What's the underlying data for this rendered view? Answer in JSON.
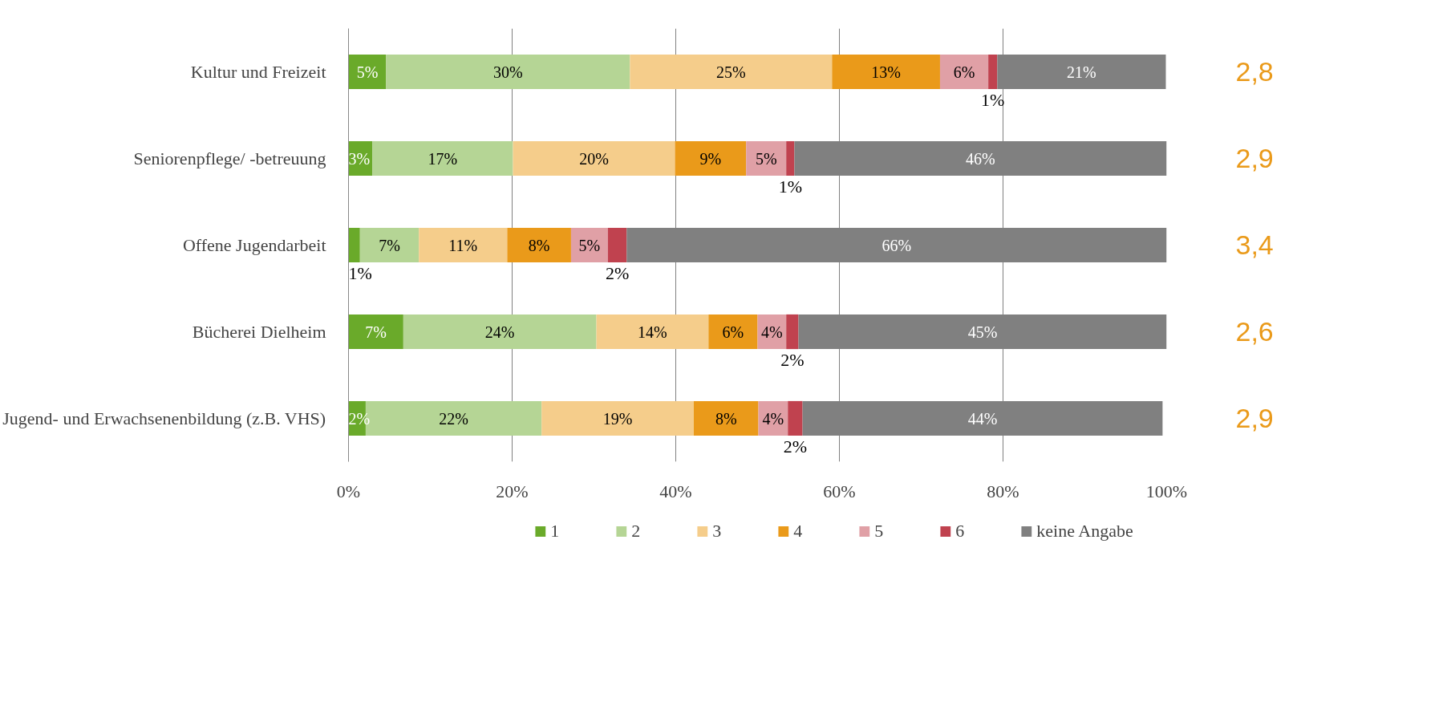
{
  "chart_data": {
    "type": "bar",
    "orientation": "horizontal",
    "stacked": true,
    "categories": [
      "Kultur und Freizeit",
      "Seniorenpflege/ -betreuung",
      "Offene Jugendarbeit",
      "Bücherei Dielheim",
      "Jugend- und Erwachsenenbildung (z.B. VHS)"
    ],
    "series": [
      {
        "name": "1",
        "color": "#6aaa2a",
        "values": [
          4.6,
          2.9,
          1.4,
          6.7,
          2.1
        ],
        "value_labels": [
          "5%",
          "3%",
          "1%",
          "7%",
          "2%"
        ]
      },
      {
        "name": "2",
        "color": "#b5d595",
        "values": [
          29.8,
          17.2,
          7.2,
          23.6,
          21.5
        ],
        "value_labels": [
          "30%",
          "17%",
          "7%",
          "24%",
          "22%"
        ]
      },
      {
        "name": "3",
        "color": "#f5cd8b",
        "values": [
          24.7,
          19.8,
          10.8,
          13.7,
          18.6
        ],
        "value_labels": [
          "25%",
          "20%",
          "11%",
          "14%",
          "19%"
        ]
      },
      {
        "name": "4",
        "color": "#ea9a1a",
        "values": [
          13.2,
          8.7,
          7.8,
          6.0,
          7.9
        ],
        "value_labels": [
          "13%",
          "9%",
          "8%",
          "6%",
          "8%"
        ]
      },
      {
        "name": "5",
        "color": "#e0a0a6",
        "values": [
          5.9,
          4.9,
          4.5,
          3.5,
          3.6
        ],
        "value_labels": [
          "6%",
          "5%",
          "5%",
          "4%",
          "4%"
        ]
      },
      {
        "name": "6",
        "color": "#c0424f",
        "values": [
          1.1,
          1.0,
          2.3,
          1.5,
          1.8
        ],
        "value_labels": [
          "1%",
          "1%",
          "2%",
          "2%",
          "2%"
        ]
      },
      {
        "name": "keine Angabe",
        "color": "#808080",
        "values": [
          20.6,
          45.5,
          66.0,
          45.0,
          44.0
        ],
        "value_labels": [
          "21%",
          "46%",
          "66%",
          "45%",
          "44%"
        ]
      }
    ],
    "xlim": [
      0,
      100
    ],
    "xticks": [
      {
        "value": 0,
        "label": "0%"
      },
      {
        "value": 20,
        "label": "20%"
      },
      {
        "value": 40,
        "label": "40%"
      },
      {
        "value": 60,
        "label": "60%"
      },
      {
        "value": 80,
        "label": "80%"
      },
      {
        "value": 100,
        "label": "100%"
      }
    ],
    "grid": "x",
    "legend": "bottom",
    "annotations": [
      "2,8",
      "2,9",
      "3,4",
      "2,6",
      "2,9"
    ]
  }
}
